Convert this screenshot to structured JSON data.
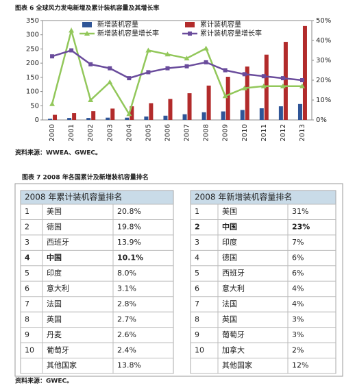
{
  "figure6_title": "图表 6  全球风力发电新增及累计装机容量及其增长率",
  "chart_data": {
    "type": "bar-line",
    "categories": [
      "2000",
      "2001",
      "2002",
      "2003",
      "2004",
      "2005",
      "2006",
      "2007",
      "2008",
      "2009",
      "2010",
      "2011",
      "2012",
      "2013"
    ],
    "series": [
      {
        "name": "新增装机容量",
        "color": "#2f5597",
        "kind": "bar",
        "values": [
          4,
          7,
          7,
          8,
          8,
          12,
          15,
          20,
          27,
          30,
          35,
          41,
          48,
          56
        ]
      },
      {
        "name": "累计装机容量",
        "color": "#b22b2b",
        "kind": "bar",
        "values": [
          18,
          24,
          31,
          40,
          48,
          59,
          74,
          94,
          121,
          152,
          188,
          230,
          275,
          331
        ]
      },
      {
        "name": "新增装机容量增长率",
        "color": "#92c75a",
        "kind": "line",
        "marker": "triangle",
        "axis": "y2",
        "values": [
          8,
          45,
          10,
          19,
          3,
          35,
          33,
          31,
          36,
          12,
          16,
          17,
          17,
          17
        ]
      },
      {
        "name": "累计装机容量增长率",
        "color": "#6a4c9c",
        "kind": "line",
        "marker": "square",
        "axis": "y2",
        "values": [
          32,
          35,
          28,
          26,
          21,
          24,
          26,
          27,
          29,
          25,
          23,
          22,
          21,
          20
        ]
      }
    ],
    "ylim": [
      0,
      350
    ],
    "yticks": [
      0,
      50,
      100,
      150,
      200,
      250,
      300,
      350
    ],
    "y2lim": [
      0,
      50
    ],
    "y2ticks": [
      {
        "value": 0,
        "label": "0%"
      },
      {
        "value": 10,
        "label": "10%"
      },
      {
        "value": 20,
        "label": "20%"
      },
      {
        "value": 30,
        "label": "30%"
      },
      {
        "value": 40,
        "label": "40%"
      },
      {
        "value": 50,
        "label": "50%"
      }
    ]
  },
  "source_1": "资料来源：WWEA、GWEC。",
  "figure7_title": "图表 7    2008 年各国累计及新增装机容量排名",
  "tables": [
    {
      "header": "2008 年累计装机容量排名",
      "bold_row": 3,
      "rows": [
        [
          "1",
          "美国",
          "20.8%"
        ],
        [
          "2",
          "德国",
          "19.8%"
        ],
        [
          "3",
          "西班牙",
          "13.9%"
        ],
        [
          "4",
          "中国",
          "10.1%"
        ],
        [
          "5",
          "印度",
          "8.0%"
        ],
        [
          "6",
          "意大利",
          "3.1%"
        ],
        [
          "7",
          "法国",
          "2.8%"
        ],
        [
          "8",
          "英国",
          "2.7%"
        ],
        [
          "9",
          "丹麦",
          "2.6%"
        ],
        [
          "10",
          "葡萄牙",
          "2.4%"
        ]
      ],
      "others": [
        "其他国家",
        "13.8%"
      ]
    },
    {
      "header": "2008 年新增装机容量排名",
      "bold_row": 1,
      "rows": [
        [
          "1",
          "美国",
          "31%"
        ],
        [
          "2",
          "中国",
          "23%"
        ],
        [
          "3",
          "印度",
          "7%"
        ],
        [
          "4",
          "德国",
          "6%"
        ],
        [
          "5",
          "西班牙",
          "6%"
        ],
        [
          "6",
          "意大利",
          "4%"
        ],
        [
          "7",
          "法国",
          "4%"
        ],
        [
          "8",
          "英国",
          "3%"
        ],
        [
          "9",
          "葡萄牙",
          "3%"
        ],
        [
          "10",
          "加拿大",
          "2%"
        ]
      ],
      "others": [
        "其他国家",
        "12%"
      ]
    }
  ],
  "source_2": "资料来源：GWEC。"
}
